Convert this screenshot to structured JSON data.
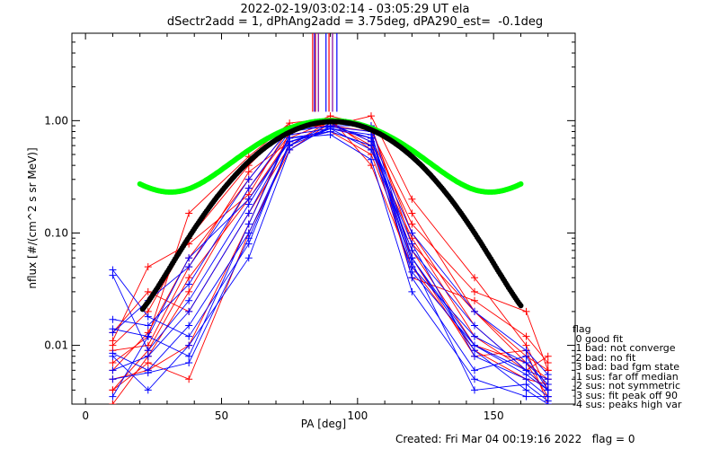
{
  "titles": {
    "line1": "2022-02-19/03:02:14 - 03:05:29 UT ela",
    "line2": "dSectr2add = 1, dPhAng2add = 3.75deg, dPA290_est=  -0.1deg"
  },
  "footer": {
    "created": "Created: Fri Mar 04 00:19:16 2022   flag = 0"
  },
  "flag_legend": [
    "flag",
    " 0 good fit",
    " 1 bad: not converge",
    " 2 bad: no fit",
    " 3 bad: bad fgm state",
    "-1 sus: far off median",
    "-2 sus: not symmetric",
    "-3 sus: fit peak off 90",
    "-4 sus: peaks high var"
  ],
  "colors": {
    "red": "#ff0000",
    "blue": "#0000ff",
    "green": "#00ff00",
    "black": "#000000"
  },
  "chart_data": {
    "type": "scatter",
    "xlabel": "PA [deg]",
    "ylabel": "nflux [#/(cm^2 s sr MeV)]",
    "xlim": [
      -5,
      180
    ],
    "ylim": [
      0.003,
      6.0
    ],
    "yscale": "log",
    "xticks": [
      0,
      50,
      100,
      150
    ],
    "yticks": [
      {
        "v": 0.01,
        "label": "0.01"
      },
      {
        "v": 0.1,
        "label": "0.10"
      },
      {
        "v": 1.0,
        "label": "1.00"
      }
    ],
    "pa_bins": [
      10,
      23,
      38,
      60,
      75,
      90,
      105,
      120,
      143,
      162,
      170
    ],
    "series": [
      {
        "color": "red",
        "values": [
          0.004,
          0.009,
          0.04,
          0.2,
          0.7,
          1.0,
          0.55,
          0.09,
          0.012,
          0.006,
          0.004
        ]
      },
      {
        "color": "red",
        "values": [
          0.006,
          0.013,
          0.06,
          0.3,
          0.85,
          0.95,
          0.6,
          0.07,
          0.01,
          0.007,
          0.005
        ]
      },
      {
        "color": "red",
        "values": [
          0.01,
          0.02,
          0.09,
          0.4,
          0.9,
          0.9,
          0.8,
          0.15,
          0.02,
          0.008,
          0.006
        ]
      },
      {
        "color": "red",
        "values": [
          0.007,
          0.012,
          0.15,
          0.48,
          0.95,
          1.05,
          0.4,
          0.05,
          0.009,
          0.005,
          0.0045
        ]
      },
      {
        "color": "red",
        "values": [
          0.013,
          0.03,
          0.02,
          0.15,
          0.6,
          1.0,
          0.85,
          0.1,
          0.015,
          0.006,
          0.008
        ]
      },
      {
        "color": "red",
        "values": [
          0.003,
          0.008,
          0.03,
          0.25,
          0.75,
          0.85,
          0.7,
          0.12,
          0.03,
          0.02,
          0.006
        ]
      },
      {
        "color": "red",
        "values": [
          0.005,
          0.006,
          0.01,
          0.12,
          0.8,
          1.1,
          0.9,
          0.08,
          0.02,
          0.007,
          0.0035
        ]
      },
      {
        "color": "red",
        "values": [
          0.009,
          0.01,
          0.05,
          0.35,
          0.65,
          0.8,
          0.5,
          0.06,
          0.008,
          0.009,
          0.003
        ]
      },
      {
        "color": "red",
        "values": [
          0.004,
          0.007,
          0.005,
          0.1,
          0.55,
          0.95,
          0.65,
          0.04,
          0.025,
          0.012,
          0.007
        ]
      },
      {
        "color": "red",
        "values": [
          0.011,
          0.05,
          0.08,
          0.22,
          0.88,
          0.9,
          1.1,
          0.2,
          0.04,
          0.01,
          0.004
        ]
      },
      {
        "color": "blue",
        "values": [
          0.047,
          0.018,
          0.012,
          0.08,
          0.65,
          0.85,
          0.75,
          0.06,
          0.01,
          0.006,
          0.004
        ]
      },
      {
        "color": "blue",
        "values": [
          0.042,
          0.009,
          0.025,
          0.18,
          0.7,
          0.8,
          0.6,
          0.08,
          0.008,
          0.005,
          0.0035
        ]
      },
      {
        "color": "blue",
        "values": [
          0.017,
          0.015,
          0.035,
          0.25,
          0.8,
          0.9,
          0.7,
          0.05,
          0.012,
          0.007,
          0.0045
        ]
      },
      {
        "color": "blue",
        "values": [
          0.014,
          0.012,
          0.008,
          0.12,
          0.75,
          0.85,
          0.55,
          0.07,
          0.015,
          0.006,
          0.005
        ]
      },
      {
        "color": "blue",
        "values": [
          0.013,
          0.025,
          0.05,
          0.3,
          0.85,
          0.88,
          0.8,
          0.04,
          0.006,
          0.008,
          0.004
        ]
      },
      {
        "color": "blue",
        "values": [
          0.0085,
          0.006,
          0.015,
          0.1,
          0.6,
          0.95,
          0.65,
          0.1,
          0.02,
          0.009,
          0.0055
        ]
      },
      {
        "color": "blue",
        "values": [
          0.008,
          0.004,
          0.01,
          0.06,
          0.55,
          0.9,
          0.9,
          0.06,
          0.009,
          0.004,
          0.003
        ]
      },
      {
        "color": "blue",
        "values": [
          0.006,
          0.008,
          0.02,
          0.15,
          0.7,
          0.75,
          0.45,
          0.03,
          0.005,
          0.0035,
          0.0035
        ]
      },
      {
        "color": "blue",
        "values": [
          0.0035,
          0.012,
          0.06,
          0.2,
          0.65,
          0.8,
          0.6,
          0.045,
          0.01,
          0.0055,
          0.004
        ]
      },
      {
        "color": "blue",
        "values": [
          0.005,
          0.0057,
          0.007,
          0.09,
          0.6,
          0.85,
          0.7,
          0.055,
          0.004,
          0.0045,
          0.0032
        ]
      }
    ],
    "green_fit": {
      "color": "green",
      "x_range": [
        20,
        160
      ],
      "center": 90,
      "sigma": 25.6,
      "peak": 1.0,
      "rise": 0.3,
      "floor_sigma": 28
    },
    "black_fit": {
      "color": "black",
      "x_range": [
        21,
        160
      ],
      "center": 91,
      "sigma": 24.2,
      "peak": 0.98,
      "rise": 0.0035,
      "floor_sigma": 22
    },
    "peak_markers": [
      {
        "color": "red",
        "x": [
          83.5,
          84.5,
          89.5
        ]
      },
      {
        "color": "blue",
        "x": [
          84.2,
          88.4,
          92.4
        ]
      },
      {
        "color": "purple",
        "x": [
          85.6,
          90.8
        ]
      }
    ],
    "peak_marker_range": [
      1.2,
      6.0
    ]
  }
}
